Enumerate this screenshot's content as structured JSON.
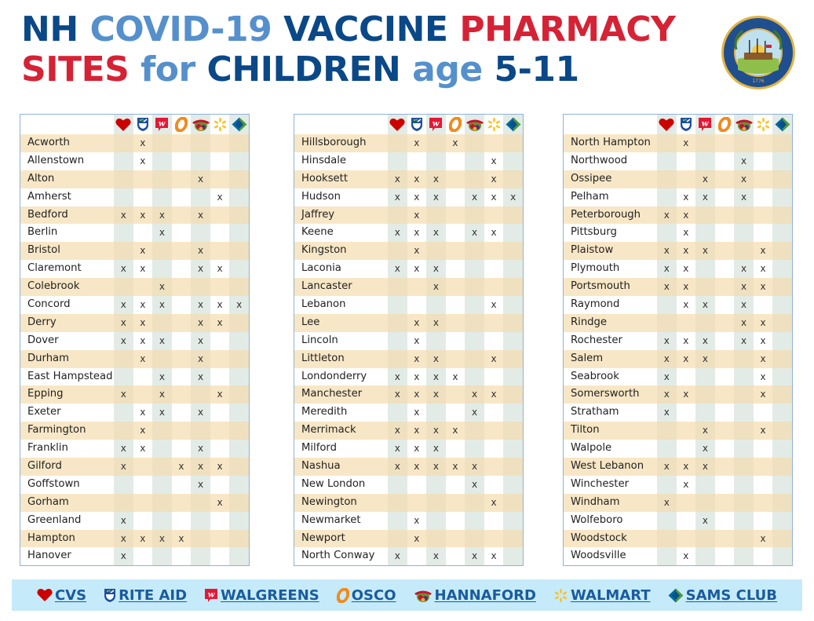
{
  "title": {
    "line1": [
      {
        "text": "NH ",
        "color": "dark"
      },
      {
        "text": "COVID-19 ",
        "color": "light"
      },
      {
        "text": "VACCINE ",
        "color": "dark"
      },
      {
        "text": "PHARMACY",
        "color": "red"
      }
    ],
    "line2": [
      {
        "text": "SITES ",
        "color": "red"
      },
      {
        "text": "for ",
        "color": "light"
      },
      {
        "text": "CHILDREN ",
        "color": "dark"
      },
      {
        "text": "age ",
        "color": "light"
      },
      {
        "text": "5-11",
        "color": "dark"
      }
    ]
  },
  "seal": {
    "icon": "nh-state-seal-icon",
    "year": "1776"
  },
  "pharmacies": [
    {
      "key": "cvs",
      "label": "CVS",
      "icon": "heart-icon",
      "color": "#cc0000"
    },
    {
      "key": "riteaid",
      "label": "RITE AID",
      "icon": "mortar-pestle-shield-icon",
      "color": "#1c4fa0"
    },
    {
      "key": "walgreens",
      "label": "WALGREENS",
      "icon": "walgreens-w-icon",
      "color": "#e31837"
    },
    {
      "key": "osco",
      "label": "OSCO",
      "icon": "osco-o-icon",
      "color": "#f28a1e"
    },
    {
      "key": "hannaford",
      "label": "HANNAFORD",
      "icon": "hannaford-produce-icon",
      "color": "#c8102e"
    },
    {
      "key": "walmart",
      "label": "WALMART",
      "icon": "walmart-spark-icon",
      "color": "#ffc220"
    },
    {
      "key": "samsclub",
      "label": "SAMS CLUB",
      "icon": "sams-club-diamond-icon",
      "color": "#0067a0"
    }
  ],
  "mark": "x",
  "tables": [
    {
      "rows": [
        {
          "town": "Acworth",
          "sites": [
            "",
            "x",
            "",
            "",
            "",
            "",
            ""
          ]
        },
        {
          "town": "Allenstown",
          "sites": [
            "",
            "x",
            "",
            "",
            "",
            "",
            ""
          ]
        },
        {
          "town": "Alton",
          "sites": [
            "",
            "",
            "",
            "",
            "x",
            "",
            ""
          ]
        },
        {
          "town": "Amherst",
          "sites": [
            "",
            "",
            "",
            "",
            "",
            "x",
            ""
          ]
        },
        {
          "town": "Bedford",
          "sites": [
            "x",
            "x",
            "x",
            "",
            "x",
            "",
            ""
          ]
        },
        {
          "town": "Berlin",
          "sites": [
            "",
            "",
            "x",
            "",
            "",
            "",
            ""
          ]
        },
        {
          "town": "Bristol",
          "sites": [
            "",
            "x",
            "",
            "",
            "x",
            "",
            ""
          ]
        },
        {
          "town": "Claremont",
          "sites": [
            "x",
            "x",
            "",
            "",
            "x",
            "x",
            ""
          ]
        },
        {
          "town": "Colebrook",
          "sites": [
            "",
            "",
            "x",
            "",
            "",
            "",
            ""
          ]
        },
        {
          "town": "Concord",
          "sites": [
            "x",
            "x",
            "x",
            "",
            "x",
            "x",
            "x"
          ]
        },
        {
          "town": "Derry",
          "sites": [
            "x",
            "x",
            "",
            "",
            "x",
            "x",
            ""
          ]
        },
        {
          "town": "Dover",
          "sites": [
            "x",
            "x",
            "x",
            "",
            "x",
            "",
            ""
          ]
        },
        {
          "town": "Durham",
          "sites": [
            "",
            "x",
            "",
            "",
            "x",
            "",
            ""
          ]
        },
        {
          "town": "East Hampstead",
          "sites": [
            "",
            "",
            "x",
            "",
            "x",
            "",
            ""
          ]
        },
        {
          "town": "Epping",
          "sites": [
            "x",
            "",
            "x",
            "",
            "",
            "x",
            ""
          ]
        },
        {
          "town": "Exeter",
          "sites": [
            "",
            "x",
            "x",
            "",
            "x",
            "",
            ""
          ]
        },
        {
          "town": "Farmington",
          "sites": [
            "",
            "x",
            "",
            "",
            "",
            "",
            ""
          ]
        },
        {
          "town": "Franklin",
          "sites": [
            "x",
            "x",
            "",
            "",
            "x",
            "",
            ""
          ]
        },
        {
          "town": "Gilford",
          "sites": [
            "x",
            "",
            "",
            "x",
            "x",
            "x",
            ""
          ]
        },
        {
          "town": "Goffstown",
          "sites": [
            "",
            "",
            "",
            "",
            "x",
            "",
            ""
          ]
        },
        {
          "town": "Gorham",
          "sites": [
            "",
            "",
            "",
            "",
            "",
            "x",
            ""
          ]
        },
        {
          "town": "Greenland",
          "sites": [
            "x",
            "",
            "",
            "",
            "",
            "",
            ""
          ]
        },
        {
          "town": "Hampton",
          "sites": [
            "x",
            "x",
            "x",
            "x",
            "",
            "",
            ""
          ]
        },
        {
          "town": "Hanover",
          "sites": [
            "x",
            "",
            "",
            "",
            "",
            "",
            ""
          ]
        }
      ]
    },
    {
      "rows": [
        {
          "town": "Hillsborough",
          "sites": [
            "",
            "x",
            "",
            "x",
            "",
            "",
            ""
          ]
        },
        {
          "town": "Hinsdale",
          "sites": [
            "",
            "",
            "",
            "",
            "",
            "x",
            ""
          ]
        },
        {
          "town": "Hooksett",
          "sites": [
            "x",
            "x",
            "x",
            "",
            "",
            "x",
            ""
          ]
        },
        {
          "town": "Hudson",
          "sites": [
            "x",
            "x",
            "x",
            "",
            "x",
            "x",
            "x"
          ]
        },
        {
          "town": "Jaffrey",
          "sites": [
            "",
            "x",
            "",
            "",
            "",
            "",
            ""
          ]
        },
        {
          "town": "Keene",
          "sites": [
            "x",
            "x",
            "x",
            "",
            "x",
            "x",
            ""
          ]
        },
        {
          "town": "Kingston",
          "sites": [
            "",
            "x",
            "",
            "",
            "",
            "",
            ""
          ]
        },
        {
          "town": "Laconia",
          "sites": [
            "x",
            "x",
            "x",
            "",
            "",
            "",
            ""
          ]
        },
        {
          "town": "Lancaster",
          "sites": [
            "",
            "",
            "x",
            "",
            "",
            "",
            ""
          ]
        },
        {
          "town": "Lebanon",
          "sites": [
            "",
            "",
            "",
            "",
            "",
            "x",
            ""
          ]
        },
        {
          "town": "Lee",
          "sites": [
            "",
            "x",
            "x",
            "",
            "",
            "",
            ""
          ]
        },
        {
          "town": "Lincoln",
          "sites": [
            "",
            "x",
            "",
            "",
            "",
            "",
            ""
          ]
        },
        {
          "town": "Littleton",
          "sites": [
            "",
            "x",
            "x",
            "",
            "",
            "x",
            ""
          ]
        },
        {
          "town": "Londonderry",
          "sites": [
            "x",
            "x",
            "x",
            "x",
            "",
            "",
            ""
          ]
        },
        {
          "town": "Manchester",
          "sites": [
            "x",
            "x",
            "x",
            "",
            "x",
            "x",
            ""
          ]
        },
        {
          "town": "Meredith",
          "sites": [
            "",
            "x",
            "",
            "",
            "x",
            "",
            ""
          ]
        },
        {
          "town": "Merrimack",
          "sites": [
            "x",
            "x",
            "x",
            "x",
            "",
            "",
            ""
          ]
        },
        {
          "town": "Milford",
          "sites": [
            "x",
            "x",
            "x",
            "",
            "",
            "",
            ""
          ]
        },
        {
          "town": "Nashua",
          "sites": [
            "x",
            "x",
            "x",
            "x",
            "x",
            "",
            ""
          ]
        },
        {
          "town": "New London",
          "sites": [
            "",
            "",
            "",
            "",
            "x",
            "",
            ""
          ]
        },
        {
          "town": "Newington",
          "sites": [
            "",
            "",
            "",
            "",
            "",
            "x",
            ""
          ]
        },
        {
          "town": "Newmarket",
          "sites": [
            "",
            "x",
            "",
            "",
            "",
            "",
            ""
          ]
        },
        {
          "town": "Newport",
          "sites": [
            "",
            "x",
            "",
            "",
            "",
            "",
            ""
          ]
        },
        {
          "town": "North Conway",
          "sites": [
            "x",
            "",
            "x",
            "",
            "x",
            "x",
            ""
          ]
        }
      ]
    },
    {
      "rows": [
        {
          "town": "North Hampton",
          "sites": [
            "",
            "x",
            "",
            "",
            "",
            "",
            ""
          ]
        },
        {
          "town": "Northwood",
          "sites": [
            "",
            "",
            "",
            "",
            "x",
            "",
            ""
          ]
        },
        {
          "town": "Ossipee",
          "sites": [
            "",
            "",
            "x",
            "",
            "x",
            "",
            ""
          ]
        },
        {
          "town": "Pelham",
          "sites": [
            "",
            "x",
            "x",
            "",
            "x",
            "",
            ""
          ]
        },
        {
          "town": "Peterborough",
          "sites": [
            "x",
            "x",
            "",
            "",
            "",
            "",
            ""
          ]
        },
        {
          "town": "Pittsburg",
          "sites": [
            "",
            "x",
            "",
            "",
            "",
            "",
            ""
          ]
        },
        {
          "town": "Plaistow",
          "sites": [
            "x",
            "x",
            "x",
            "",
            "",
            "x",
            ""
          ]
        },
        {
          "town": "Plymouth",
          "sites": [
            "x",
            "x",
            "",
            "",
            "x",
            "x",
            ""
          ]
        },
        {
          "town": "Portsmouth",
          "sites": [
            "x",
            "x",
            "",
            "",
            "x",
            "x",
            ""
          ]
        },
        {
          "town": "Raymond",
          "sites": [
            "",
            "x",
            "x",
            "",
            "x",
            "",
            ""
          ]
        },
        {
          "town": "Rindge",
          "sites": [
            "",
            "",
            "",
            "",
            "x",
            "x",
            ""
          ]
        },
        {
          "town": "Rochester",
          "sites": [
            "x",
            "x",
            "x",
            "",
            "x",
            "x",
            ""
          ]
        },
        {
          "town": "Salem",
          "sites": [
            "x",
            "x",
            "x",
            "",
            "",
            "x",
            ""
          ]
        },
        {
          "town": "Seabrook",
          "sites": [
            "x",
            "",
            "",
            "",
            "",
            "x",
            ""
          ]
        },
        {
          "town": "Somersworth",
          "sites": [
            "x",
            "x",
            "",
            "",
            "",
            "x",
            ""
          ]
        },
        {
          "town": "Stratham",
          "sites": [
            "x",
            "",
            "",
            "",
            "",
            "",
            ""
          ]
        },
        {
          "town": "Tilton",
          "sites": [
            "",
            "",
            "x",
            "",
            "",
            "x",
            ""
          ]
        },
        {
          "town": "Walpole",
          "sites": [
            "",
            "",
            "x",
            "",
            "",
            "",
            ""
          ]
        },
        {
          "town": "West Lebanon",
          "sites": [
            "x",
            "x",
            "x",
            "",
            "",
            "",
            ""
          ]
        },
        {
          "town": "Winchester",
          "sites": [
            "",
            "x",
            "",
            "",
            "",
            "",
            ""
          ]
        },
        {
          "town": "Windham",
          "sites": [
            "x",
            "",
            "",
            "",
            "",
            "",
            ""
          ]
        },
        {
          "town": "Wolfeboro",
          "sites": [
            "",
            "",
            "x",
            "",
            "",
            "",
            ""
          ]
        },
        {
          "town": "Woodstock",
          "sites": [
            "",
            "",
            "",
            "",
            "",
            "x",
            ""
          ]
        },
        {
          "town": "Woodsville",
          "sites": [
            "",
            "x",
            "",
            "",
            "",
            "",
            ""
          ]
        }
      ]
    }
  ],
  "legend": {
    "items": [
      {
        "label": "CVS",
        "icon": "heart-icon"
      },
      {
        "label": "RITE AID",
        "icon": "mortar-pestle-shield-icon"
      },
      {
        "label": "WALGREENS",
        "icon": "walgreens-w-icon"
      },
      {
        "label": "OSCO",
        "icon": "osco-o-icon"
      },
      {
        "label": "HANNAFORD",
        "icon": "hannaford-produce-icon"
      },
      {
        "label": "WALMART",
        "icon": "walmart-spark-icon"
      },
      {
        "label": "SAMS CLUB",
        "icon": "sams-club-diamond-icon"
      }
    ]
  },
  "colors": {
    "title_dark": "#0a4887",
    "title_light": "#5590cc",
    "title_red": "#d62235",
    "row_alt": "#f8e7c6",
    "col_tint": "#e3ebe6",
    "legend_bg": "#c5ebfb",
    "legend_text": "#1b5b9c"
  }
}
